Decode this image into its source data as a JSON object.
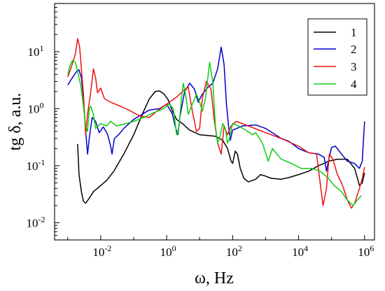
{
  "chart_data": {
    "type": "line",
    "title": "",
    "xlabel": "ω, Hz",
    "ylabel": "tg δ, a.u.",
    "x_scale": "log",
    "y_scale": "log",
    "xlim": [
      0.0004,
      2000000
    ],
    "ylim": [
      0.005,
      70
    ],
    "grid": false,
    "legend_position": "top-right",
    "x_ticks": [
      {
        "base": "10",
        "exp": "-2",
        "value": 0.01
      },
      {
        "base": "10",
        "exp": "0",
        "value": 1
      },
      {
        "base": "10",
        "exp": "2",
        "value": 100
      },
      {
        "base": "10",
        "exp": "4",
        "value": 10000
      },
      {
        "base": "10",
        "exp": "6",
        "value": 1000000
      }
    ],
    "y_ticks": [
      {
        "base": "10",
        "exp": "-2",
        "value": 0.01
      },
      {
        "base": "10",
        "exp": "-1",
        "value": 0.1
      },
      {
        "base": "10",
        "exp": "0",
        "value": 1
      },
      {
        "base": "10",
        "exp": "1",
        "value": 10
      }
    ],
    "series": [
      {
        "name": "1",
        "color": "#000000",
        "points": [
          [
            0.002,
            0.24
          ],
          [
            0.0022,
            0.07
          ],
          [
            0.0026,
            0.035
          ],
          [
            0.003,
            0.024
          ],
          [
            0.0035,
            0.022
          ],
          [
            0.0045,
            0.027
          ],
          [
            0.006,
            0.035
          ],
          [
            0.01,
            0.045
          ],
          [
            0.015,
            0.055
          ],
          [
            0.025,
            0.08
          ],
          [
            0.05,
            0.16
          ],
          [
            0.1,
            0.35
          ],
          [
            0.2,
            0.9
          ],
          [
            0.3,
            1.5
          ],
          [
            0.45,
            2.0
          ],
          [
            0.6,
            2.05
          ],
          [
            0.8,
            1.85
          ],
          [
            1.1,
            1.45
          ],
          [
            1.5,
            0.9
          ],
          [
            2,
            0.65
          ],
          [
            3,
            0.55
          ],
          [
            5,
            0.42
          ],
          [
            10,
            0.35
          ],
          [
            30,
            0.33
          ],
          [
            50,
            0.28
          ],
          [
            70,
            0.2
          ],
          [
            90,
            0.12
          ],
          [
            100,
            0.11
          ],
          [
            120,
            0.18
          ],
          [
            140,
            0.16
          ],
          [
            170,
            0.09
          ],
          [
            220,
            0.06
          ],
          [
            300,
            0.052
          ],
          [
            500,
            0.058
          ],
          [
            700,
            0.07
          ],
          [
            900,
            0.067
          ],
          [
            1500,
            0.06
          ],
          [
            3000,
            0.058
          ],
          [
            5000,
            0.062
          ],
          [
            10000,
            0.07
          ],
          [
            20000,
            0.08
          ],
          [
            40000,
            0.1
          ],
          [
            60000,
            0.11
          ],
          [
            80000,
            0.12
          ],
          [
            150000,
            0.13
          ],
          [
            300000,
            0.13
          ],
          [
            500000,
            0.09
          ],
          [
            700000,
            0.045
          ],
          [
            850000,
            0.05
          ],
          [
            1000000,
            0.075
          ]
        ]
      },
      {
        "name": "2",
        "color": "#0000cc",
        "points": [
          [
            0.001,
            2.6
          ],
          [
            0.0013,
            3.3
          ],
          [
            0.0018,
            4.4
          ],
          [
            0.0022,
            4.8
          ],
          [
            0.0026,
            3.5
          ],
          [
            0.003,
            1.5
          ],
          [
            0.0035,
            0.4
          ],
          [
            0.004,
            0.16
          ],
          [
            0.0045,
            0.3
          ],
          [
            0.0055,
            0.7
          ],
          [
            0.007,
            0.6
          ],
          [
            0.009,
            0.38
          ],
          [
            0.012,
            0.48
          ],
          [
            0.016,
            0.36
          ],
          [
            0.02,
            0.22
          ],
          [
            0.022,
            0.16
          ],
          [
            0.026,
            0.3
          ],
          [
            0.035,
            0.35
          ],
          [
            0.05,
            0.45
          ],
          [
            0.1,
            0.65
          ],
          [
            0.3,
            0.95
          ],
          [
            0.6,
            1.0
          ],
          [
            1,
            1.2
          ],
          [
            1.5,
            0.8
          ],
          [
            1.8,
            0.5
          ],
          [
            2.2,
            0.35
          ],
          [
            2.5,
            0.7
          ],
          [
            3.5,
            2.0
          ],
          [
            5,
            2.8
          ],
          [
            7,
            2.2
          ],
          [
            9,
            1.3
          ],
          [
            12,
            1.8
          ],
          [
            18,
            2.4
          ],
          [
            25,
            2.8
          ],
          [
            35,
            5.0
          ],
          [
            45,
            12.0
          ],
          [
            55,
            6.0
          ],
          [
            65,
            1.2
          ],
          [
            75,
            0.5
          ],
          [
            85,
            0.28
          ],
          [
            100,
            0.42
          ],
          [
            200,
            0.5
          ],
          [
            500,
            0.52
          ],
          [
            1000,
            0.45
          ],
          [
            2000,
            0.35
          ],
          [
            3000,
            0.3
          ],
          [
            5000,
            0.27
          ],
          [
            10000,
            0.2
          ],
          [
            20000,
            0.17
          ],
          [
            40000,
            0.16
          ],
          [
            60000,
            0.14
          ],
          [
            70000,
            0.08
          ],
          [
            80000,
            0.12
          ],
          [
            100000,
            0.21
          ],
          [
            130000,
            0.22
          ],
          [
            200000,
            0.16
          ],
          [
            300000,
            0.12
          ],
          [
            500000,
            0.11
          ],
          [
            700000,
            0.09
          ],
          [
            850000,
            0.12
          ],
          [
            1000000,
            0.6
          ]
        ]
      },
      {
        "name": "3",
        "color": "#ee1111",
        "points": [
          [
            0.001,
            3.6
          ],
          [
            0.0013,
            5.5
          ],
          [
            0.0017,
            9.0
          ],
          [
            0.002,
            17.0
          ],
          [
            0.0023,
            12.0
          ],
          [
            0.0026,
            5.0
          ],
          [
            0.003,
            1.8
          ],
          [
            0.0035,
            0.35
          ],
          [
            0.004,
            0.8
          ],
          [
            0.005,
            2.0
          ],
          [
            0.006,
            5.0
          ],
          [
            0.007,
            3.5
          ],
          [
            0.008,
            1.9
          ],
          [
            0.01,
            2.3
          ],
          [
            0.013,
            1.5
          ],
          [
            0.02,
            1.3
          ],
          [
            0.04,
            1.1
          ],
          [
            0.07,
            0.95
          ],
          [
            0.15,
            0.75
          ],
          [
            0.3,
            0.7
          ],
          [
            0.5,
            0.9
          ],
          [
            0.8,
            1.1
          ],
          [
            1.2,
            1.3
          ],
          [
            2,
            1.6
          ],
          [
            3,
            2.0
          ],
          [
            4.5,
            2.4
          ],
          [
            6,
            0.9
          ],
          [
            8,
            0.4
          ],
          [
            10,
            0.45
          ],
          [
            12,
            1.5
          ],
          [
            16,
            3.0
          ],
          [
            22,
            2.2
          ],
          [
            28,
            0.6
          ],
          [
            35,
            0.25
          ],
          [
            45,
            0.16
          ],
          [
            55,
            0.5
          ],
          [
            70,
            0.35
          ],
          [
            90,
            0.5
          ],
          [
            130,
            0.6
          ],
          [
            300,
            0.5
          ],
          [
            1000,
            0.38
          ],
          [
            3000,
            0.3
          ],
          [
            10000,
            0.22
          ],
          [
            20000,
            0.17
          ],
          [
            35000,
            0.16
          ],
          [
            45000,
            0.05
          ],
          [
            55000,
            0.02
          ],
          [
            70000,
            0.04
          ],
          [
            85000,
            0.16
          ],
          [
            110000,
            0.13
          ],
          [
            150000,
            0.07
          ],
          [
            200000,
            0.05
          ],
          [
            250000,
            0.035
          ],
          [
            300000,
            0.025
          ],
          [
            400000,
            0.018
          ],
          [
            500000,
            0.022
          ],
          [
            700000,
            0.04
          ],
          [
            850000,
            0.06
          ],
          [
            1000000,
            0.095
          ]
        ]
      },
      {
        "name": "4",
        "color": "#11cc11",
        "points": [
          [
            0.001,
            4.0
          ],
          [
            0.0012,
            6.0
          ],
          [
            0.0014,
            7.0
          ],
          [
            0.0017,
            6.5
          ],
          [
            0.002,
            4.5
          ],
          [
            0.0025,
            2.5
          ],
          [
            0.003,
            1.1
          ],
          [
            0.0035,
            0.5
          ],
          [
            0.004,
            0.4
          ],
          [
            0.0045,
            1.0
          ],
          [
            0.005,
            1.1
          ],
          [
            0.006,
            0.8
          ],
          [
            0.007,
            0.45
          ],
          [
            0.01,
            0.55
          ],
          [
            0.015,
            0.5
          ],
          [
            0.02,
            0.6
          ],
          [
            0.03,
            0.5
          ],
          [
            0.06,
            0.55
          ],
          [
            0.1,
            0.6
          ],
          [
            0.2,
            0.7
          ],
          [
            0.4,
            0.85
          ],
          [
            0.8,
            1.0
          ],
          [
            1.2,
            1.2
          ],
          [
            1.6,
            1.0
          ],
          [
            2,
            0.35
          ],
          [
            2.3,
            0.4
          ],
          [
            2.8,
            1.5
          ],
          [
            3.2,
            2.8
          ],
          [
            3.8,
            1.7
          ],
          [
            4.5,
            0.8
          ],
          [
            6,
            1.2
          ],
          [
            8,
            1.8
          ],
          [
            10,
            1.3
          ],
          [
            12,
            0.9
          ],
          [
            15,
            1.5
          ],
          [
            20,
            6.5
          ],
          [
            25,
            3.0
          ],
          [
            30,
            0.5
          ],
          [
            35,
            0.25
          ],
          [
            40,
            0.3
          ],
          [
            50,
            0.55
          ],
          [
            60,
            0.45
          ],
          [
            70,
            0.25
          ],
          [
            80,
            0.3
          ],
          [
            100,
            0.55
          ],
          [
            150,
            0.5
          ],
          [
            250,
            0.42
          ],
          [
            400,
            0.35
          ],
          [
            500,
            0.38
          ],
          [
            800,
            0.25
          ],
          [
            1200,
            0.12
          ],
          [
            1600,
            0.2
          ],
          [
            3000,
            0.13
          ],
          [
            6000,
            0.11
          ],
          [
            12000,
            0.09
          ],
          [
            25000,
            0.09
          ],
          [
            45000,
            0.08
          ],
          [
            60000,
            0.07
          ],
          [
            80000,
            0.06
          ],
          [
            120000,
            0.045
          ],
          [
            200000,
            0.035
          ],
          [
            300000,
            0.025
          ],
          [
            450000,
            0.02
          ],
          [
            600000,
            0.025
          ],
          [
            800000,
            0.03
          ]
        ]
      }
    ]
  }
}
